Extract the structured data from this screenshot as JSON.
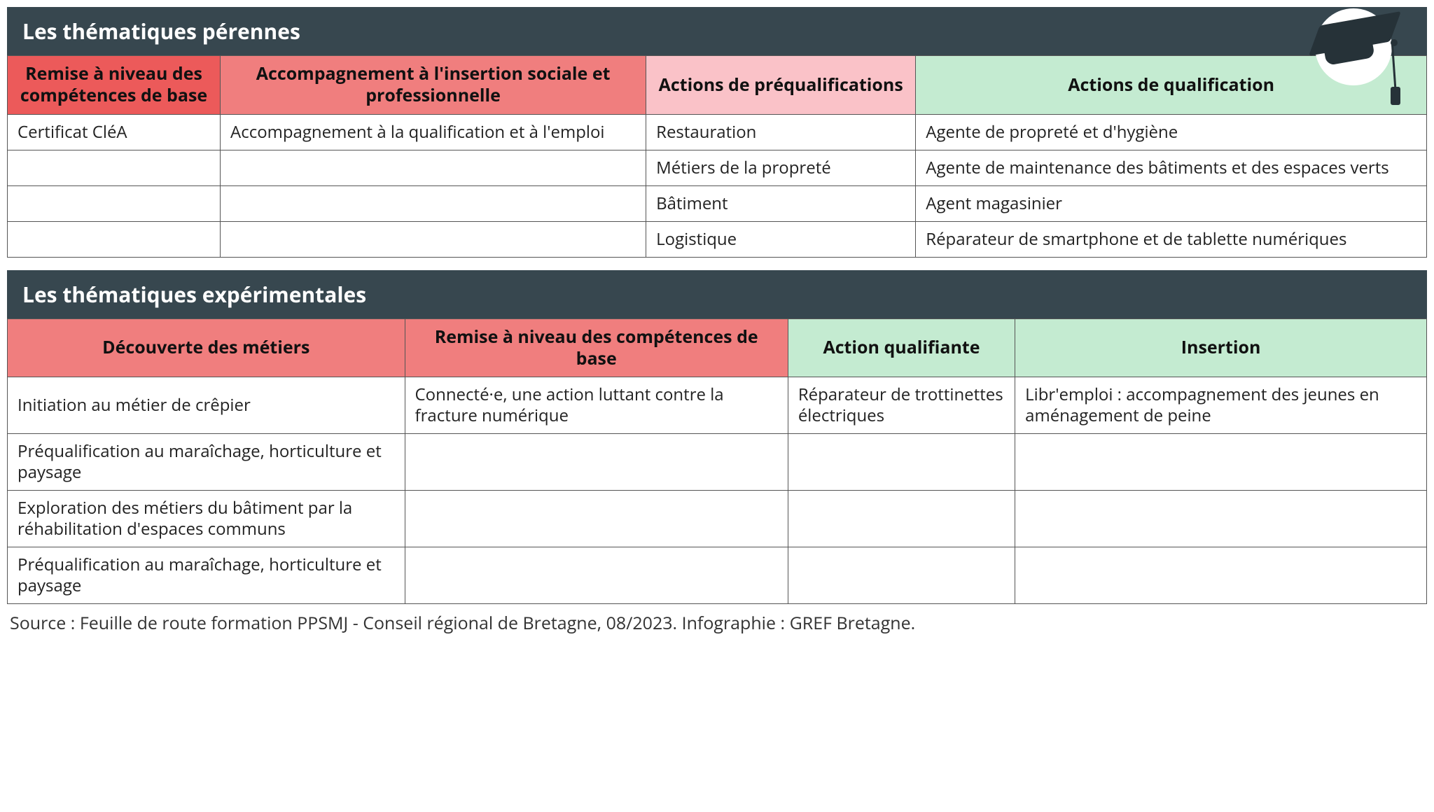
{
  "colors": {
    "header_bg": "#36474f",
    "header_text": "#ffffff",
    "red_dark": "#ec5a5a",
    "red_mid": "#f07e7e",
    "red_light": "#fac2c8",
    "green_light": "#c4ebd1",
    "border": "#555555",
    "cell_bg": "#ffffff",
    "text": "#222222"
  },
  "section1": {
    "title": "Les thématiques pérennes",
    "columns": [
      {
        "label": "Remise à niveau des compétences de base",
        "bg": "red_dark",
        "width": "15%"
      },
      {
        "label": "Accompagnement à l'insertion sociale et professionnelle",
        "bg": "red_mid",
        "width": "30%"
      },
      {
        "label": "Actions de préqualifications",
        "bg": "red_light",
        "width": "19%"
      },
      {
        "label": "Actions de qualification",
        "bg": "green_light",
        "width": "36%"
      }
    ],
    "rows": [
      [
        "Certificat CléA",
        "Accompagnement à la qualification et à l'emploi",
        "Restauration",
        "Agente de propreté et d'hygiène"
      ],
      [
        "",
        "",
        "Métiers de la propreté",
        "Agente de maintenance des bâtiments et des espaces verts"
      ],
      [
        "",
        "",
        "Bâtiment",
        "Agent magasinier"
      ],
      [
        "",
        "",
        "Logistique",
        "Réparateur de smartphone et de tablette numériques"
      ]
    ]
  },
  "section2": {
    "title": "Les thématiques expérimentales",
    "columns": [
      {
        "label": "Découverte des métiers",
        "bg": "red_mid",
        "width": "28%"
      },
      {
        "label": "Remise à niveau des compétences de base",
        "bg": "red_mid",
        "width": "27%"
      },
      {
        "label": "Action qualifiante",
        "bg": "green_light",
        "width": "16%"
      },
      {
        "label": "Insertion",
        "bg": "green_light",
        "width": "29%"
      }
    ],
    "rows": [
      [
        "Initiation au métier de crêpier",
        "Connecté·e, une action luttant contre la fracture numérique",
        "Réparateur de trottinettes électriques",
        "Libr'emploi : accompagnement des jeunes en aménagement de peine"
      ],
      [
        "Préqualification au maraîchage, horticulture et paysage",
        "",
        "",
        ""
      ],
      [
        "Exploration des métiers du bâtiment par la réhabilitation d'espaces communs",
        "",
        "",
        ""
      ],
      [
        "Préqualification au maraîchage, horticulture et paysage",
        "",
        "",
        ""
      ]
    ]
  },
  "source": "Source : Feuille de route formation PPSMJ - Conseil régional de Bretagne, 08/2023. Infographie : GREF Bretagne."
}
